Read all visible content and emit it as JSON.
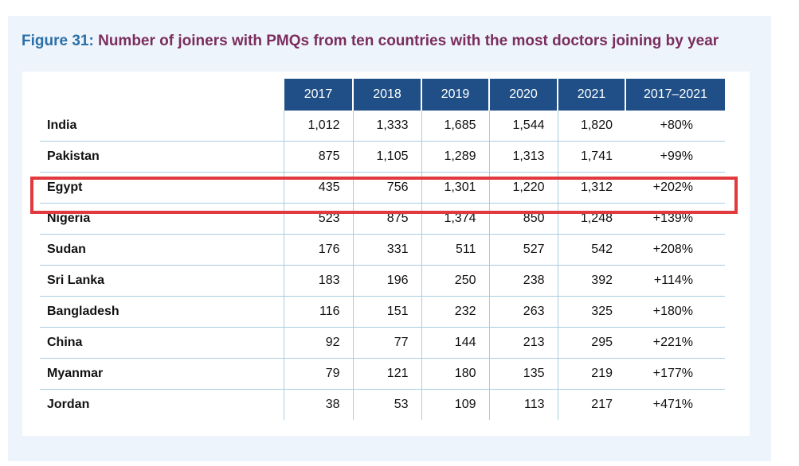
{
  "figure": {
    "label": "Figure 31:",
    "title": "Number of joiners with PMQs from ten countries with the most doctors joining by year"
  },
  "table": {
    "headers": [
      "2017",
      "2018",
      "2019",
      "2020",
      "2021",
      "2017–2021"
    ],
    "rows": [
      {
        "country": "India",
        "values": [
          "1,012",
          "1,333",
          "1,685",
          "1,544",
          "1,820"
        ],
        "change": "+80%"
      },
      {
        "country": "Pakistan",
        "values": [
          "875",
          "1,105",
          "1,289",
          "1,313",
          "1,741"
        ],
        "change": "+99%"
      },
      {
        "country": "Egypt",
        "values": [
          "435",
          "756",
          "1,301",
          "1,220",
          "1,312"
        ],
        "change": "+202%"
      },
      {
        "country": "Nigeria",
        "values": [
          "523",
          "875",
          "1,374",
          "850",
          "1,248"
        ],
        "change": "+139%"
      },
      {
        "country": "Sudan",
        "values": [
          "176",
          "331",
          "511",
          "527",
          "542"
        ],
        "change": "+208%"
      },
      {
        "country": "Sri Lanka",
        "values": [
          "183",
          "196",
          "250",
          "238",
          "392"
        ],
        "change": "+114%"
      },
      {
        "country": "Bangladesh",
        "values": [
          "116",
          "151",
          "232",
          "263",
          "325"
        ],
        "change": "+180%"
      },
      {
        "country": "China",
        "values": [
          "92",
          "77",
          "144",
          "213",
          "295"
        ],
        "change": "+221%"
      },
      {
        "country": "Myanmar",
        "values": [
          "79",
          "121",
          "180",
          "135",
          "219"
        ],
        "change": "+177%"
      },
      {
        "country": "Jordan",
        "values": [
          "38",
          "53",
          "109",
          "113",
          "217"
        ],
        "change": "+471%"
      }
    ]
  },
  "highlighted_row": "Egypt",
  "colors": {
    "header_bg": "#1f4f86",
    "figure_label": "#2a6fa8",
    "title_text": "#7a2d5e",
    "highlight_border": "#e0393e",
    "panel_bg": "#eef4fb"
  }
}
